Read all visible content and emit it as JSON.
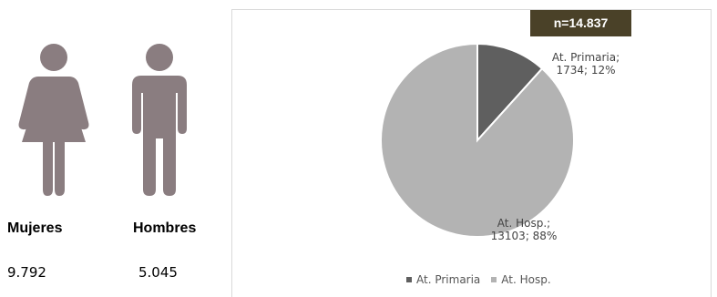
{
  "colors": {
    "figure": "#8a7d80",
    "badge_bg": "#4a4128",
    "primaria": "#5f5f5f",
    "hosp": "#b3b3b3"
  },
  "people": {
    "women": {
      "label": "Mujeres",
      "count": "9.792",
      "icon": "woman-icon"
    },
    "men": {
      "label": "Hombres",
      "count": "5.045",
      "icon": "man-icon"
    }
  },
  "badge": "n=14.837",
  "chart_data": {
    "type": "pie",
    "title": "",
    "slices": [
      {
        "name": "At. Primaria",
        "value": 1734,
        "percent": 12,
        "label_line1": "At. Primaria;",
        "label_line2": "1734; 12%"
      },
      {
        "name": "At. Hosp.",
        "value": 13103,
        "percent": 88,
        "label_line1": "At. Hosp.;",
        "label_line2": "13103; 88%"
      }
    ],
    "legend": [
      "At. Primaria",
      "At. Hosp."
    ],
    "legend_position": "bottom"
  }
}
